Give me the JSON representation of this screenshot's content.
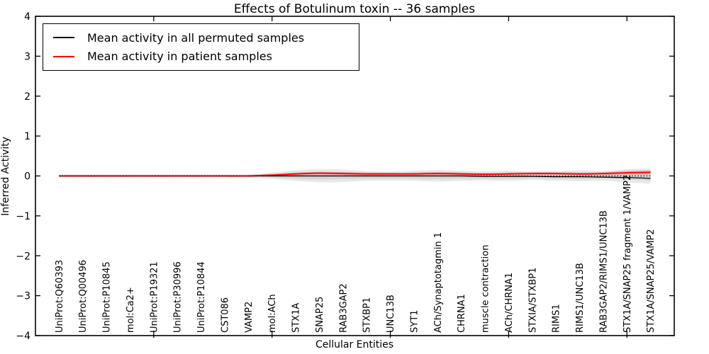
{
  "figure": {
    "title": "Effects of Botulinum toxin -- 36 samples",
    "xlabel": "Cellular Entities",
    "ylabel": "Inferred Activity"
  },
  "legend": {
    "entries": [
      {
        "label": "Mean activity in all permuted samples",
        "color": "#000000"
      },
      {
        "label": "Mean activity in patient samples",
        "color": "#ff0000"
      }
    ]
  },
  "chart_data": {
    "type": "line",
    "title": "Effects of Botulinum toxin -- 36 samples",
    "xlabel": "Cellular Entities",
    "ylabel": "Inferred Activity",
    "xlim": [
      0,
      27
    ],
    "ylim": [
      -4,
      4
    ],
    "grid": false,
    "legend_position": "upper left",
    "y_axis": {
      "tick_values": [
        4,
        3,
        2,
        1,
        0,
        -1,
        -2,
        -3,
        -4
      ],
      "tick_labels": [
        "4",
        "3",
        "2",
        "1",
        "0",
        "−1",
        "−2",
        "−3",
        "−4"
      ]
    },
    "x_axis": {
      "major_tick_values": [
        5,
        10,
        15,
        20,
        25
      ]
    },
    "categories": [
      "UniProt:Q60393",
      "UniProt:Q00496",
      "UniProt:P10845",
      "mol:Ca2+",
      "UniProt:P19321",
      "UniProt:P30996",
      "UniProt:P10844",
      "CST086",
      "VAMP2",
      "mol:ACh",
      "STX1A",
      "SNAP25",
      "RAB3GAP2",
      "STXBP1",
      "UNC13B",
      "SYT1",
      "ACh/Synaptotagmin 1",
      "CHRNA1",
      "muscle contraction",
      "ACh/CHRNA1",
      "STXIA/STXBP1",
      "RIMS1",
      "RIMS1/UNC13B",
      "RAB3GAP2/RIMS1/UNC13B",
      "STX1A/SNAP25 fragment 1/VAMP2",
      "STX1A/SNAP25/VAMP2"
    ],
    "series": [
      {
        "name": "Mean activity in all permuted samples",
        "color": "#000000",
        "values": [
          0,
          0,
          0,
          0,
          0,
          0,
          0,
          0,
          0,
          0,
          0,
          0,
          0,
          0,
          0,
          0,
          0,
          0,
          -0.01,
          -0.01,
          -0.01,
          -0.02,
          -0.02,
          -0.03,
          -0.04,
          -0.06
        ]
      },
      {
        "name": "Mean activity in patient samples",
        "color": "#ff0000",
        "values": [
          0,
          0,
          0,
          0,
          0,
          0,
          0,
          0,
          0,
          0.02,
          0.05,
          0.07,
          0.06,
          0.05,
          0.05,
          0.05,
          0.06,
          0.05,
          0.04,
          0.05,
          0.06,
          0.06,
          0.05,
          0.06,
          0.08,
          0.09
        ]
      }
    ],
    "bands": [
      {
        "name": "permuted-spread-outer",
        "color": "#808080",
        "alpha": 0.18,
        "upper": [
          0.04,
          0.04,
          0.04,
          0.04,
          0.04,
          0.04,
          0.04,
          0.04,
          0.04,
          0.08,
          0.14,
          0.17,
          0.16,
          0.12,
          0.11,
          0.13,
          0.15,
          0.13,
          0.11,
          0.13,
          0.11,
          0.12,
          0.14,
          0.12,
          0.17,
          0.19
        ],
        "lower": [
          -0.04,
          -0.04,
          -0.04,
          -0.04,
          -0.04,
          -0.04,
          -0.04,
          -0.04,
          -0.04,
          -0.07,
          -0.12,
          -0.16,
          -0.15,
          -0.12,
          -0.11,
          -0.12,
          -0.14,
          -0.12,
          -0.11,
          -0.12,
          -0.1,
          -0.12,
          -0.13,
          -0.12,
          -0.16,
          -0.2
        ]
      },
      {
        "name": "permuted-spread-inner",
        "color": "#808080",
        "alpha": 0.18,
        "upper": [
          0.025,
          0.025,
          0.025,
          0.025,
          0.025,
          0.025,
          0.025,
          0.025,
          0.025,
          0.05,
          0.08,
          0.1,
          0.09,
          0.07,
          0.07,
          0.08,
          0.09,
          0.08,
          0.07,
          0.08,
          0.07,
          0.07,
          0.08,
          0.07,
          0.1,
          0.12
        ],
        "lower": [
          -0.025,
          -0.025,
          -0.025,
          -0.025,
          -0.025,
          -0.025,
          -0.025,
          -0.025,
          -0.025,
          -0.045,
          -0.07,
          -0.09,
          -0.08,
          -0.07,
          -0.07,
          -0.07,
          -0.08,
          -0.07,
          -0.07,
          -0.07,
          -0.06,
          -0.07,
          -0.08,
          -0.07,
          -0.09,
          -0.12
        ]
      },
      {
        "name": "patient-spread",
        "color": "#ff0000",
        "alpha": 0.25,
        "upper": [
          0.015,
          0.015,
          0.015,
          0.015,
          0.015,
          0.015,
          0.015,
          0.015,
          0.015,
          0.05,
          0.085,
          0.105,
          0.095,
          0.085,
          0.085,
          0.085,
          0.095,
          0.085,
          0.075,
          0.085,
          0.095,
          0.095,
          0.085,
          0.095,
          0.125,
          0.14
        ],
        "lower": [
          -0.015,
          -0.015,
          -0.015,
          -0.015,
          -0.015,
          -0.015,
          -0.015,
          -0.015,
          -0.015,
          -0.01,
          0.015,
          0.035,
          0.025,
          0.015,
          0.015,
          0.015,
          0.025,
          0.015,
          0.005,
          0.015,
          0.025,
          0.025,
          0.015,
          0.025,
          0.035,
          0.04
        ]
      }
    ],
    "zero_line": {
      "style": "dotted",
      "color": "#000000",
      "value": 0
    }
  }
}
